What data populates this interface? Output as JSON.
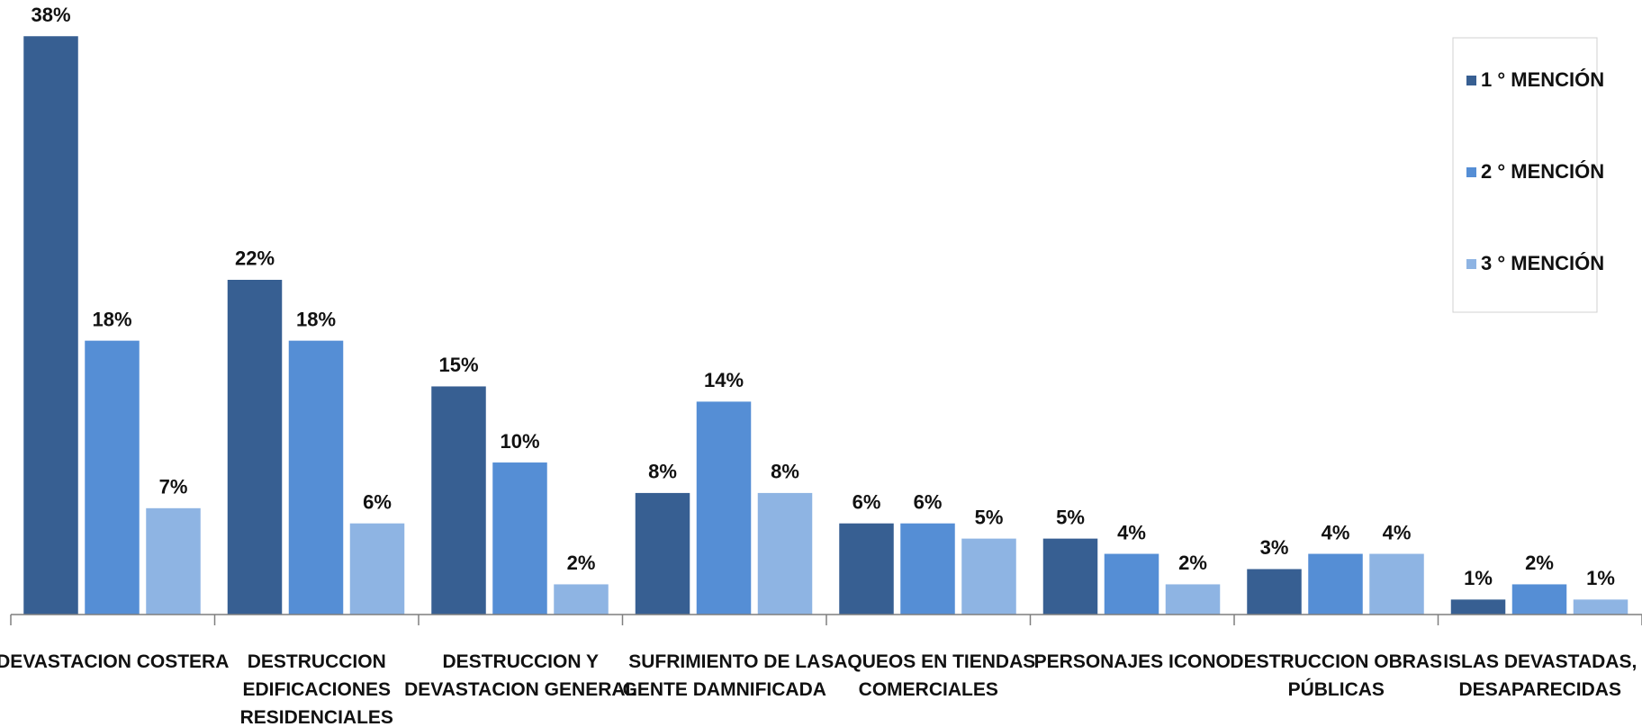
{
  "chart_data": {
    "type": "bar",
    "categories": [
      [
        "DEVASTACION COSTERA"
      ],
      [
        "DESTRUCCION",
        "EDIFICACIONES",
        "RESIDENCIALES"
      ],
      [
        "DESTRUCCION Y",
        "DEVASTACION GENERAL"
      ],
      [
        "SUFRIMIENTO DE LA",
        "GENTE DAMNIFICADA"
      ],
      [
        "SAQUEOS EN TIENDAS",
        "COMERCIALES"
      ],
      [
        "PERSONAJES ICONO"
      ],
      [
        "DESTRUCCION OBRAS",
        "PÚBLICAS"
      ],
      [
        "ISLAS DEVASTADAS,",
        "DESAPARECIDAS"
      ]
    ],
    "series": [
      {
        "name": "1 ° MENCIÓN",
        "color": "#375F92",
        "values": [
          38,
          22,
          15,
          8,
          6,
          5,
          3,
          1
        ],
        "labels": [
          "38%",
          "22%",
          "15%",
          "8%",
          "6%",
          "5%",
          "3%",
          "1%"
        ]
      },
      {
        "name": "2 ° MENCIÓN",
        "color": "#558ED5",
        "values": [
          18,
          18,
          10,
          14,
          6,
          4,
          4,
          2
        ],
        "labels": [
          "18%",
          "18%",
          "10%",
          "14%",
          "6%",
          "4%",
          "4%",
          "2%"
        ]
      },
      {
        "name": "3 ° MENCIÓN",
        "color": "#8EB4E3",
        "values": [
          7,
          6,
          2,
          8,
          5,
          2,
          4,
          1
        ],
        "labels": [
          "7%",
          "6%",
          "2%",
          "8%",
          "5%",
          "2%",
          "4%",
          "1%"
        ]
      }
    ],
    "ylim": [
      0,
      38
    ],
    "grid": false,
    "legend_position": "top-right"
  }
}
